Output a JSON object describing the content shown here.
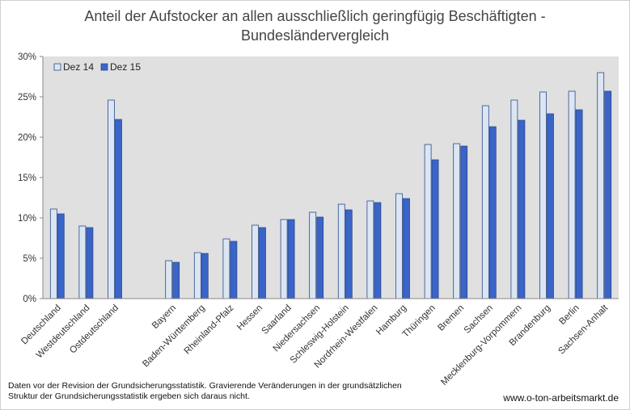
{
  "chart_data": {
    "type": "bar",
    "title_lines": [
      "Anteil der Aufstocker an allen ausschließlich geringfügig Beschäftigten -",
      "Bundesländervergleich"
    ],
    "xlabel": "",
    "ylabel": "",
    "ylim": [
      0,
      30
    ],
    "yticks": [
      "0%",
      "5%",
      "10%",
      "15%",
      "20%",
      "25%",
      "30%"
    ],
    "grid": false,
    "legend_position": "top-left",
    "categories": [
      "Deutschland",
      "Westdeutschland",
      "Ostdeutschland",
      "",
      "Bayern",
      "Baden-Württemberg",
      "Rheinland-Pfalz",
      "Hessen",
      "Saarland",
      "Niedersachsen",
      "Schleswig-Holstein",
      "Nordrhein-Westfalen",
      "Hamburg",
      "Thüringen",
      "Bremen",
      "Sachsen",
      "Mecklenburg-Vorpommern",
      "Brandenburg",
      "Berlin",
      "Sachsen-Anhalt"
    ],
    "series": [
      {
        "name": "Dez 14",
        "color": "#dce6f2",
        "values": [
          11.1,
          9.0,
          24.6,
          null,
          4.7,
          5.7,
          7.4,
          9.1,
          9.8,
          10.7,
          11.7,
          12.1,
          13.0,
          19.1,
          19.2,
          23.9,
          24.6,
          25.6,
          25.7,
          28.0
        ]
      },
      {
        "name": "Dez 15",
        "color": "#3a64c8",
        "values": [
          10.5,
          8.8,
          22.2,
          null,
          4.5,
          5.6,
          7.1,
          8.8,
          9.8,
          10.1,
          11.0,
          11.9,
          12.4,
          17.2,
          18.9,
          21.3,
          22.1,
          22.9,
          23.4,
          25.7
        ]
      }
    ]
  },
  "footnote_lines": [
    "Daten vor der Revision der Grundsicherungsstatistik. Gravierende Veränderungen in der grundsätzlichen",
    "Struktur der Grundsicherungsstatistik ergeben sich daraus nicht."
  ],
  "credit": "www.o-ton-arbeitsmarkt.de"
}
